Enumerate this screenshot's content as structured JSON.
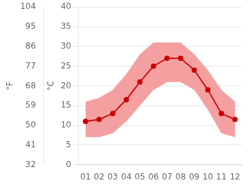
{
  "chart_data": {
    "type": "line",
    "categories": [
      "01",
      "02",
      "03",
      "04",
      "05",
      "06",
      "07",
      "08",
      "09",
      "10",
      "11",
      "12"
    ],
    "series": [
      {
        "color": "#cc0000",
        "marker": "circle",
        "values": [
          11,
          11.5,
          13,
          16.5,
          21,
          25,
          27,
          27,
          24,
          19,
          13,
          11.5
        ]
      }
    ],
    "band": {
      "color": "#f5a0a0",
      "upper": [
        16,
        17,
        19,
        23,
        28,
        31,
        31,
        31,
        28,
        24,
        19,
        16
      ],
      "lower": [
        7,
        7,
        8,
        11,
        15,
        19,
        21,
        21,
        19,
        14,
        8,
        7
      ]
    },
    "ylim": [
      0,
      40
    ],
    "yticks": [
      0,
      5,
      10,
      15,
      20,
      25,
      30,
      35,
      40
    ],
    "y2lim": [
      32,
      104
    ],
    "y2ticks": [
      32,
      41,
      50,
      59,
      68,
      77,
      86,
      95,
      104
    ],
    "ylabel": "°C",
    "y2label": "°F",
    "grid": true
  }
}
